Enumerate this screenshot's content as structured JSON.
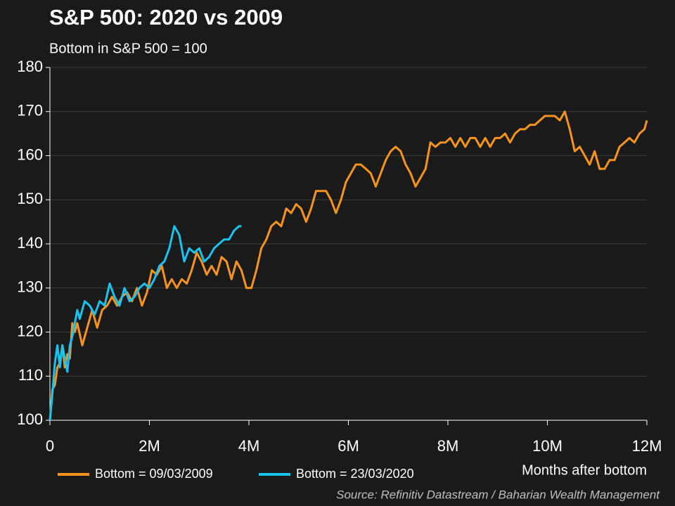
{
  "chart_data": {
    "type": "line",
    "title": "S&P 500: 2020 vs 2009",
    "subtitle": "Bottom in S&P 500 = 100",
    "x_label": "Months after bottom",
    "source": "Source: Refinitiv Datastream / Baharian Wealth Management",
    "xlim": [
      0,
      12
    ],
    "xticks": [
      0,
      {
        "value": 2,
        "label": "2M"
      },
      {
        "value": 4,
        "label": "4M"
      },
      {
        "value": 6,
        "label": "6M"
      },
      {
        "value": 8,
        "label": "8M"
      },
      {
        "value": 10,
        "label": "10M"
      },
      {
        "value": 12,
        "label": "12M"
      }
    ],
    "ylim": [
      100,
      180
    ],
    "yticks": [
      100,
      110,
      120,
      130,
      140,
      150,
      160,
      170,
      180
    ],
    "grid": true,
    "legend": "bottom",
    "series": [
      {
        "name": "Bottom = 09/03/2009",
        "color": "#f7941d",
        "x": [
          0,
          0.05,
          0.1,
          0.15,
          0.2,
          0.25,
          0.3,
          0.35,
          0.4,
          0.45,
          0.5,
          0.55,
          0.65,
          0.75,
          0.85,
          0.95,
          1.05,
          1.15,
          1.25,
          1.35,
          1.45,
          1.55,
          1.65,
          1.75,
          1.85,
          1.95,
          2.05,
          2.15,
          2.25,
          2.35,
          2.45,
          2.55,
          2.65,
          2.75,
          2.85,
          2.95,
          3.05,
          3.15,
          3.25,
          3.35,
          3.45,
          3.55,
          3.65,
          3.75,
          3.85,
          3.95,
          4.05,
          4.15,
          4.25,
          4.35,
          4.45,
          4.55,
          4.65,
          4.75,
          4.85,
          4.95,
          5.05,
          5.15,
          5.25,
          5.35,
          5.45,
          5.55,
          5.65,
          5.75,
          5.85,
          5.95,
          6.05,
          6.15,
          6.25,
          6.35,
          6.45,
          6.55,
          6.65,
          6.75,
          6.85,
          6.95,
          7.05,
          7.15,
          7.25,
          7.35,
          7.45,
          7.55,
          7.65,
          7.75,
          7.85,
          7.95,
          8.05,
          8.15,
          8.25,
          8.35,
          8.45,
          8.55,
          8.65,
          8.75,
          8.85,
          8.95,
          9.05,
          9.15,
          9.25,
          9.35,
          9.45,
          9.55,
          9.65,
          9.75,
          9.85,
          9.95,
          10.05,
          10.15,
          10.25,
          10.35,
          10.45,
          10.55,
          10.65,
          10.75,
          10.85,
          10.95,
          11.05,
          11.15,
          11.25,
          11.35,
          11.45,
          11.55,
          11.65,
          11.75,
          11.85,
          11.95,
          12
        ],
        "values": [
          100,
          107,
          108,
          112,
          113,
          117,
          112,
          115,
          114,
          122,
          120,
          122,
          117,
          121,
          125,
          121,
          125,
          126,
          128,
          126,
          128,
          129,
          127,
          130,
          126,
          129,
          134,
          133,
          135,
          130,
          132,
          130,
          132,
          131,
          134,
          138,
          136,
          133,
          135,
          133,
          137,
          136,
          132,
          136,
          134,
          130,
          130,
          134,
          139,
          141,
          144,
          145,
          144,
          148,
          147,
          149,
          148,
          145,
          148,
          152,
          152,
          152,
          150,
          147,
          150,
          154,
          156,
          158,
          158,
          157,
          156,
          153,
          156,
          159,
          161,
          162,
          161,
          158,
          156,
          153,
          155,
          157,
          163,
          162,
          163,
          163,
          164,
          162,
          164,
          162,
          164,
          164,
          162,
          164,
          162,
          164,
          164,
          165,
          163,
          165,
          166,
          166,
          167,
          167,
          168,
          169,
          169,
          169,
          168,
          170,
          166,
          161,
          162,
          160,
          158,
          161,
          157,
          157,
          159,
          159,
          162,
          163,
          164,
          163,
          165,
          166,
          168
        ]
      },
      {
        "name": "Bottom = 23/03/2020",
        "color": "#19c3f0",
        "x": [
          0,
          0.05,
          0.1,
          0.15,
          0.2,
          0.25,
          0.3,
          0.35,
          0.4,
          0.45,
          0.5,
          0.55,
          0.6,
          0.7,
          0.8,
          0.9,
          1.0,
          1.1,
          1.2,
          1.3,
          1.4,
          1.5,
          1.6,
          1.7,
          1.8,
          1.9,
          2.0,
          2.1,
          2.2,
          2.3,
          2.4,
          2.5,
          2.6,
          2.7,
          2.8,
          2.9,
          3.0,
          3.1,
          3.2,
          3.3,
          3.4,
          3.5,
          3.6,
          3.7,
          3.8,
          3.85
        ],
        "values": [
          100,
          106,
          113,
          117,
          112,
          117,
          114,
          111,
          117,
          119,
          122,
          125,
          123,
          127,
          126,
          124,
          127,
          126,
          131,
          128,
          126,
          130,
          127,
          128,
          130,
          131,
          130,
          132,
          135,
          136,
          139,
          144,
          142,
          136,
          139,
          138,
          139,
          136,
          137,
          139,
          140,
          141,
          141,
          143,
          144,
          144
        ]
      }
    ]
  }
}
